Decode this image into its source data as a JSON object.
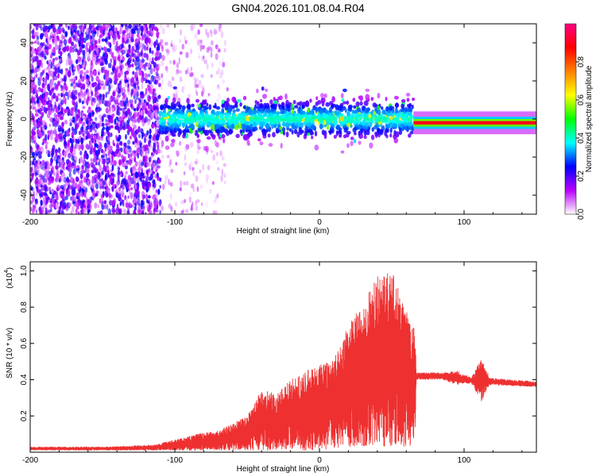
{
  "title": "GN04.2026.101.08.04.R04",
  "chart_data": [
    {
      "type": "heatmap",
      "xlabel": "Height of straight line (km)",
      "ylabel": "Frequency (Hz)",
      "xlim": [
        -200,
        150
      ],
      "ylim": [
        -50,
        50
      ],
      "xticks": [
        -200,
        -100,
        0,
        100
      ],
      "yticks": [
        -40,
        -20,
        0,
        20,
        40
      ],
      "colorbar": {
        "label": "Normalized spectral amplitude",
        "range": [
          0,
          1
        ],
        "ticks": [
          "0.0",
          "0.2",
          "0.4",
          "0.6",
          "0.8"
        ],
        "colormap": [
          "#ffffff",
          "#b900ff",
          "#0000ff",
          "#00ffff",
          "#00ff00",
          "#ffff00",
          "#ff8000",
          "#ff0000",
          "#ff0080"
        ]
      },
      "regions": [
        {
          "x_from": -200,
          "x_to": -110,
          "pattern": "broadband scattered noise",
          "amplitude": 0.2
        },
        {
          "x_from": -110,
          "x_to": -65,
          "pattern": "sparse scattered noise",
          "amplitude": 0.1
        },
        {
          "x_from": -110,
          "x_to": 65,
          "pattern": "band near 0 Hz",
          "freq_center": 0,
          "freq_halfwidth": 8,
          "amplitude": 0.35
        },
        {
          "x_from": 65,
          "x_to": 150,
          "pattern": "narrow line",
          "freq_center": -2,
          "freq_halfwidth": 2,
          "amplitude": 0.9
        }
      ]
    },
    {
      "type": "line",
      "xlabel": "Height of straight line (km)",
      "ylabel": "SNR (10 * v/v)",
      "yscale_label": "(x10",
      "yscale_exponent": "4",
      "xlim": [
        -200,
        150
      ],
      "ylim": [
        0,
        1.05
      ],
      "xticks": [
        -200,
        -100,
        0,
        100
      ],
      "yticks": [
        0.2,
        0.4,
        0.6,
        0.8,
        1.0
      ],
      "ytick_labels": [
        "0.2",
        "0.4",
        "0.6",
        "0.8",
        "1.0"
      ],
      "series": [
        {
          "name": "SNR",
          "color": "#ee3030",
          "envelope": [
            {
              "x": -200,
              "low": 0.01,
              "high": 0.03
            },
            {
              "x": -150,
              "low": 0.01,
              "high": 0.03
            },
            {
              "x": -115,
              "low": 0.01,
              "high": 0.04
            },
            {
              "x": -100,
              "low": 0.01,
              "high": 0.07
            },
            {
              "x": -85,
              "low": 0.01,
              "high": 0.1
            },
            {
              "x": -70,
              "low": 0.01,
              "high": 0.12
            },
            {
              "x": -50,
              "low": 0.01,
              "high": 0.2
            },
            {
              "x": -40,
              "low": 0.01,
              "high": 0.35
            },
            {
              "x": -30,
              "low": 0.01,
              "high": 0.32
            },
            {
              "x": -20,
              "low": 0.01,
              "high": 0.4
            },
            {
              "x": -10,
              "low": 0.01,
              "high": 0.45
            },
            {
              "x": 0,
              "low": 0.01,
              "high": 0.48
            },
            {
              "x": 10,
              "low": 0.02,
              "high": 0.52
            },
            {
              "x": 20,
              "low": 0.03,
              "high": 0.7
            },
            {
              "x": 30,
              "low": 0.03,
              "high": 0.82
            },
            {
              "x": 40,
              "low": 0.03,
              "high": 0.97
            },
            {
              "x": 50,
              "low": 0.03,
              "high": 1.0
            },
            {
              "x": 60,
              "low": 0.03,
              "high": 0.78
            },
            {
              "x": 66,
              "low": 0.04,
              "high": 0.7
            },
            {
              "x": 67,
              "low": 0.4,
              "high": 0.44
            },
            {
              "x": 85,
              "low": 0.4,
              "high": 0.44
            },
            {
              "x": 95,
              "low": 0.37,
              "high": 0.45
            },
            {
              "x": 105,
              "low": 0.38,
              "high": 0.41
            },
            {
              "x": 112,
              "low": 0.28,
              "high": 0.52
            },
            {
              "x": 118,
              "low": 0.37,
              "high": 0.41
            },
            {
              "x": 150,
              "low": 0.36,
              "high": 0.39
            }
          ]
        }
      ]
    }
  ]
}
